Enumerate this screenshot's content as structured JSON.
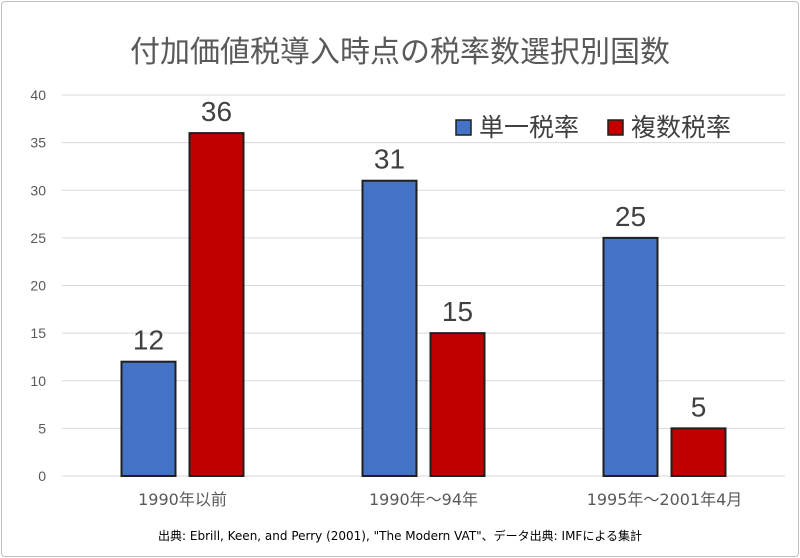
{
  "chart_data": {
    "type": "bar",
    "title": "付加価値税導入時点の税率数選択別国数",
    "categories": [
      "1990年以前",
      "1990年～94年",
      "1995年～2001年4月"
    ],
    "series": [
      {
        "name": "単一税率",
        "color": "#4472c4",
        "values": [
          12,
          31,
          25
        ]
      },
      {
        "name": "複数税率",
        "color": "#c00000",
        "values": [
          36,
          15,
          5
        ]
      }
    ],
    "ylim": [
      0,
      40
    ],
    "yticks": [
      0,
      5,
      10,
      15,
      20,
      25,
      30,
      35,
      40
    ],
    "grid": true,
    "legend": "top-right",
    "xlabel": "",
    "ylabel": ""
  },
  "source_note": "出典: Ebrill, Keen, and Perry (2001), \"The Modern VAT\"、データ出典: IMFによる集計"
}
